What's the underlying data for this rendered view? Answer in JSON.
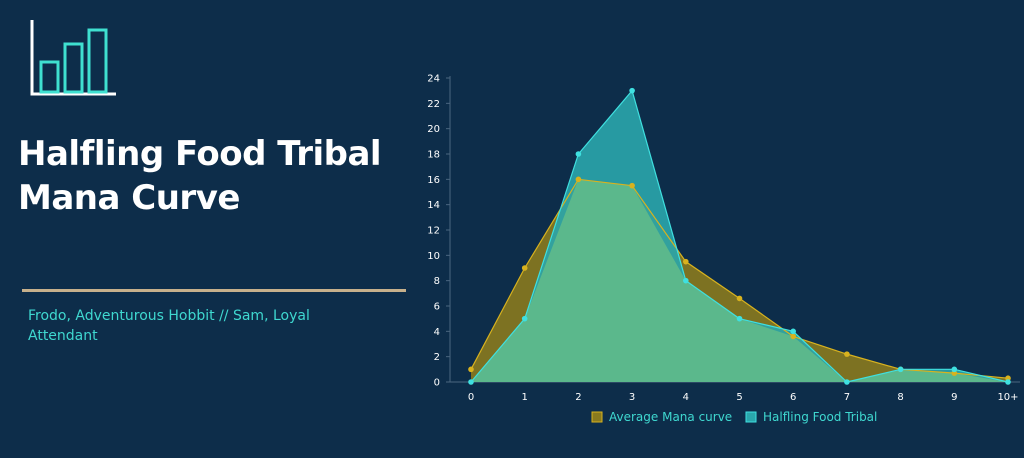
{
  "header": {
    "title_line1": "Halfling Food Tribal",
    "title_line2": "Mana Curve",
    "subtitle_line1": "Frodo, Adventurous Hobbit // Sam, Loyal",
    "subtitle_line2": "Attendant"
  },
  "icon": "bar-chart-icon",
  "colors": {
    "background": "#0d2d4a",
    "avg_fill": "#8a7a1e",
    "avg_line": "#d8b21e",
    "deck_fill": "#2aa6ac",
    "deck_line": "#3fe0e0",
    "overlap": "#5bb88c",
    "divider": "#c6b08c"
  },
  "chart_data": {
    "type": "area",
    "categories": [
      "0",
      "1",
      "2",
      "3",
      "4",
      "5",
      "6",
      "7",
      "8",
      "9",
      "10+"
    ],
    "ylim": [
      0,
      24
    ],
    "yticks": [
      "0",
      "2",
      "4",
      "6",
      "8",
      "10",
      "12",
      "14",
      "16",
      "18",
      "20",
      "22",
      "24"
    ],
    "legend_position": "bottom",
    "series": [
      {
        "name": "Average Mana curve",
        "values": [
          1,
          9,
          16,
          15.5,
          9.5,
          6.6,
          3.6,
          2.2,
          1,
          0.7,
          0.3
        ]
      },
      {
        "name": "Halfling Food Tribal",
        "values": [
          0,
          5,
          18,
          23,
          8,
          5,
          4,
          0,
          1,
          1,
          0
        ]
      }
    ]
  }
}
